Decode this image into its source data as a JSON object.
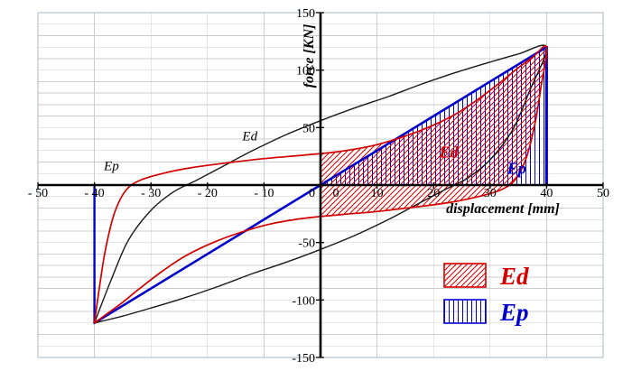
{
  "page": {
    "background": "#ffffff"
  },
  "chart_data": {
    "type": "line",
    "title": "",
    "xlabel": "displacement [mm]",
    "ylabel": "force [KN]",
    "xlim": [
      -50,
      50
    ],
    "ylim": [
      -150,
      150
    ],
    "grid": {
      "x_step": 10,
      "y_step": 10,
      "color": "#cccccc",
      "border_color": "#a8b8c4"
    },
    "colors": {
      "ed": "#d40000",
      "ep": "#0000cd",
      "axis": "#000000"
    },
    "x_ticks": [
      {
        "v": -50,
        "label": "- 50"
      },
      {
        "v": -40,
        "label": "- 40"
      },
      {
        "v": -30,
        "label": "- 30"
      },
      {
        "v": -20,
        "label": "- 20"
      },
      {
        "v": -10,
        "label": "- 10"
      },
      {
        "v": 0,
        "label": "0"
      },
      {
        "v": 10,
        "label": "10"
      },
      {
        "v": 20,
        "label": "20"
      },
      {
        "v": 30,
        "label": "30"
      },
      {
        "v": 40,
        "label": "40"
      },
      {
        "v": 50,
        "label": "50"
      }
    ],
    "y_ticks": [
      {
        "v": 150,
        "label": "150"
      },
      {
        "v": 100,
        "label": "100"
      },
      {
        "v": 50,
        "label": "50"
      },
      {
        "v": 0,
        "label": "0"
      },
      {
        "v": -50,
        "label": "-50"
      },
      {
        "v": -100,
        "label": "-100"
      },
      {
        "v": -150,
        "label": "-150"
      }
    ],
    "regions": [
      {
        "name": "Ep-area",
        "hatch": "vertical",
        "color": "#0000cd",
        "smooth": false,
        "points": [
          [
            0,
            0
          ],
          [
            40,
            120
          ],
          [
            40,
            0
          ]
        ]
      },
      {
        "name": "Ed-area",
        "hatch": "diagonal",
        "color": "#d40000",
        "smooth": true,
        "points": [
          [
            0,
            27
          ],
          [
            3,
            29
          ],
          [
            9,
            34
          ],
          [
            14,
            41
          ],
          [
            19,
            50
          ],
          [
            24,
            62
          ],
          [
            28,
            75
          ],
          [
            32,
            90
          ],
          [
            35,
            102
          ],
          [
            37.5,
            111
          ],
          [
            40,
            120
          ],
          [
            39,
            85
          ],
          [
            38,
            55
          ],
          [
            36.5,
            25
          ],
          [
            34.5,
            5
          ],
          [
            32,
            -4
          ],
          [
            28,
            -10
          ],
          [
            23,
            -15
          ],
          [
            17,
            -19
          ],
          [
            10,
            -23
          ],
          [
            3,
            -26
          ],
          [
            0,
            -27
          ]
        ]
      }
    ],
    "series": [
      {
        "name": "elastic-stiffness-line",
        "color": "#0000cd",
        "width": 2.6,
        "smooth": false,
        "closed": false,
        "points": [
          [
            -40,
            -120
          ],
          [
            40,
            120
          ]
        ]
      },
      {
        "name": "ep-right-boundary",
        "color": "#0000cd",
        "width": 3,
        "smooth": false,
        "closed": false,
        "points": [
          [
            40,
            0
          ],
          [
            40,
            120
          ]
        ]
      },
      {
        "name": "ep-left-boundary",
        "color": "#0000cd",
        "width": 2.4,
        "smooth": false,
        "closed": false,
        "points": [
          [
            -40,
            0
          ],
          [
            -40,
            -120
          ]
        ]
      },
      {
        "name": "hysteresis-outer-loop",
        "color": "#1a1a1a",
        "width": 1.4,
        "smooth": true,
        "closed": true,
        "points": [
          [
            -40,
            -120
          ],
          [
            -37,
            -82
          ],
          [
            -34,
            -48
          ],
          [
            -30,
            -22
          ],
          [
            -26,
            -6
          ],
          [
            -22,
            4
          ],
          [
            -17,
            17
          ],
          [
            -12,
            30
          ],
          [
            -6,
            44
          ],
          [
            0,
            56
          ],
          [
            6,
            67
          ],
          [
            12,
            77
          ],
          [
            18,
            88
          ],
          [
            24,
            98
          ],
          [
            30,
            107
          ],
          [
            35,
            114
          ],
          [
            40,
            120
          ],
          [
            37,
            82
          ],
          [
            34,
            48
          ],
          [
            30,
            22
          ],
          [
            26,
            6
          ],
          [
            22,
            -4
          ],
          [
            17,
            -17
          ],
          [
            12,
            -30
          ],
          [
            6,
            -44
          ],
          [
            0,
            -56
          ],
          [
            -6,
            -67
          ],
          [
            -12,
            -77
          ],
          [
            -18,
            -88
          ],
          [
            -24,
            -98
          ],
          [
            -30,
            -107
          ],
          [
            -35,
            -114
          ]
        ]
      },
      {
        "name": "hysteresis-inner-loop",
        "color": "#d40000",
        "width": 1.7,
        "smooth": true,
        "closed": true,
        "points": [
          [
            -40,
            -120
          ],
          [
            -39,
            -85
          ],
          [
            -38,
            -55
          ],
          [
            -36.5,
            -25
          ],
          [
            -34.5,
            -5
          ],
          [
            -32,
            4
          ],
          [
            -28,
            10
          ],
          [
            -23,
            15
          ],
          [
            -17,
            19
          ],
          [
            -10,
            23
          ],
          [
            -3,
            26
          ],
          [
            3,
            29
          ],
          [
            9,
            34
          ],
          [
            14,
            41
          ],
          [
            19,
            50
          ],
          [
            24,
            62
          ],
          [
            28,
            75
          ],
          [
            32,
            90
          ],
          [
            35,
            102
          ],
          [
            37.5,
            111
          ],
          [
            40,
            120
          ],
          [
            39,
            85
          ],
          [
            38,
            55
          ],
          [
            36.5,
            25
          ],
          [
            34.5,
            5
          ],
          [
            32,
            -4
          ],
          [
            28,
            -10
          ],
          [
            23,
            -15
          ],
          [
            17,
            -19
          ],
          [
            10,
            -23
          ],
          [
            3,
            -26
          ],
          [
            -3,
            -29
          ],
          [
            -9,
            -34
          ],
          [
            -14,
            -41
          ],
          [
            -19,
            -50
          ],
          [
            -24,
            -62
          ],
          [
            -28,
            -75
          ],
          [
            -32,
            -90
          ],
          [
            -35,
            -102
          ],
          [
            -37.5,
            -111
          ]
        ]
      }
    ],
    "annotations": [
      {
        "text": "Ed",
        "x": -12.5,
        "y": 39,
        "color": "#000000",
        "bold": false
      },
      {
        "text": "Ep",
        "x": -37,
        "y": 13,
        "color": "#000000",
        "bold": false
      },
      {
        "text": "Ed",
        "x": 22.7,
        "y": 24,
        "color": "#d40000",
        "bold": true
      },
      {
        "text": "Ep",
        "x": 34.7,
        "y": 10,
        "color": "#0000cd",
        "bold": true
      }
    ],
    "legend": {
      "items": [
        {
          "label": "Ed",
          "color": "#d40000",
          "hatch": "diagonal"
        },
        {
          "label": "Ep",
          "color": "#0000cd",
          "hatch": "vertical"
        }
      ]
    }
  }
}
